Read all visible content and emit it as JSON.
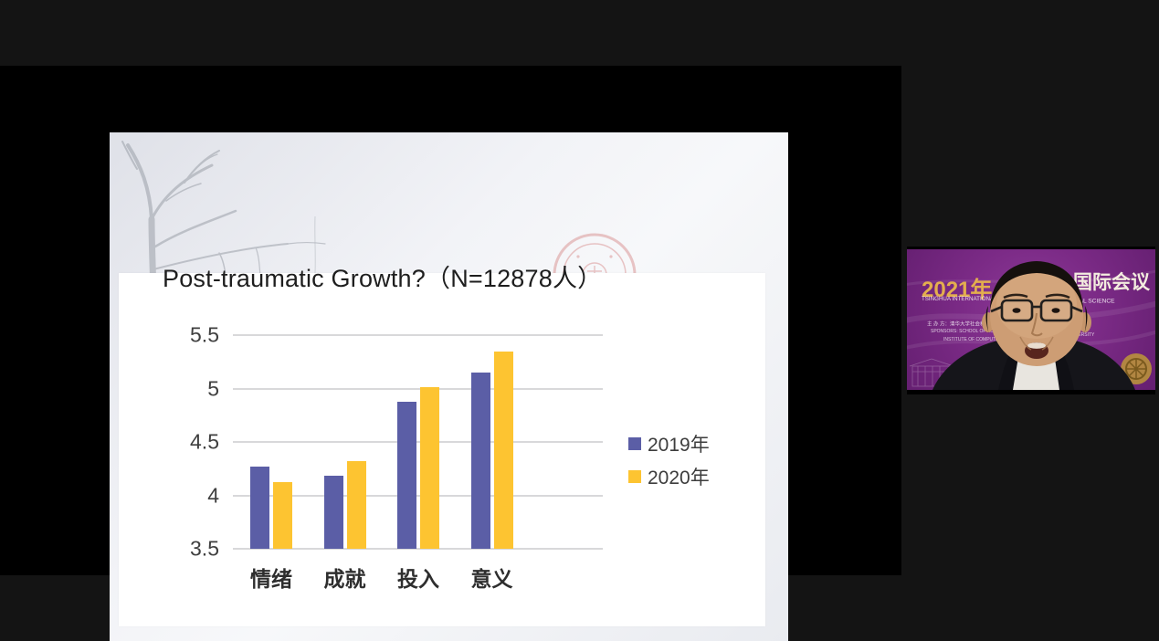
{
  "app": {
    "background_color": "#141414",
    "share_area_color": "#000000"
  },
  "slide": {
    "title": "Post-traumatic Growth?（N=12878人）",
    "decorations": [
      "bare-tree-silhouette",
      "university-seal-watermark"
    ]
  },
  "chart_data": {
    "type": "bar",
    "title": "",
    "categories": [
      "情绪",
      "成就",
      "投入",
      "意义"
    ],
    "series": [
      {
        "name": "2019年",
        "color": "#5B5EA6",
        "values": [
          4.27,
          4.18,
          4.88,
          5.15
        ]
      },
      {
        "name": "2020年",
        "color": "#FDC431",
        "values": [
          4.12,
          4.32,
          5.01,
          5.35
        ]
      }
    ],
    "xlabel": "",
    "ylabel": "",
    "ylim": [
      3.5,
      5.5
    ],
    "yticks": [
      3.5,
      4,
      4.5,
      5,
      5.5
    ],
    "grid": true,
    "gridline_color": "#d8d8da",
    "legend_position": "right"
  },
  "video_tile": {
    "banner": {
      "title_left": "2021年",
      "title_right": "国际会议",
      "title_left_color": "#E3AE4E",
      "title_right_color": "#F3ECDF",
      "subtitle_left": "TSINGHUA INTERNATIONAL",
      "subtitle_right": "TIONAL SOCIAL SCIENCE",
      "line1": "主 办 方：清华大学社会科学学院",
      "line2": "SPONSORS: SCHOOL OF SOCIAL SC",
      "line3": "INSTITUTE OF COMPUTA",
      "fragment_right": "NIVERSITY",
      "background_color": "#7C2B87"
    },
    "speaker": "male-speaker-glasses-dark-suit"
  }
}
